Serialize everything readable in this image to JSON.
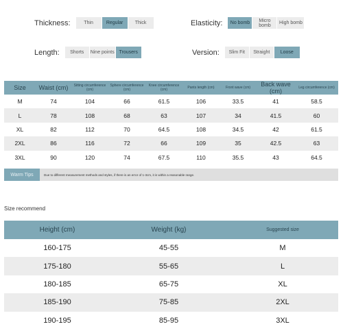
{
  "attributes": {
    "thickness": {
      "label": "Thickness:",
      "options": [
        "Thin",
        "Regular",
        "Thick"
      ],
      "selected": 1
    },
    "elasticity": {
      "label": "Elasticity:",
      "options": [
        "No bomb",
        "Micro bomb",
        "High bomb"
      ],
      "selected": 0
    },
    "length": {
      "label": "Length:",
      "options": [
        "Shorts",
        "Nine points",
        "Trousers"
      ],
      "selected": 2
    },
    "version": {
      "label": "Version:",
      "options": [
        "Slim Fit",
        "Straight",
        "Loose"
      ],
      "selected": 2
    }
  },
  "size_table": {
    "headers": [
      "Size",
      "Waist (cm)",
      "Sitting circumference (cm)",
      "Sphere circumference (cm)",
      "Knee circumference (cm)",
      "Pants length (cm)",
      "Front wave (cm)",
      "Back wave (cm)",
      "Leg circumference (cm)"
    ],
    "rows": [
      [
        "M",
        "74",
        "104",
        "66",
        "61.5",
        "106",
        "33.5",
        "41",
        "58.5"
      ],
      [
        "L",
        "78",
        "108",
        "68",
        "63",
        "107",
        "34",
        "41.5",
        "60"
      ],
      [
        "XL",
        "82",
        "112",
        "70",
        "64.5",
        "108",
        "34.5",
        "42",
        "61.5"
      ],
      [
        "2XL",
        "86",
        "116",
        "72",
        "66",
        "109",
        "35",
        "42.5",
        "63"
      ],
      [
        "3XL",
        "90",
        "120",
        "74",
        "67.5",
        "110",
        "35.5",
        "43",
        "64.5"
      ]
    ]
  },
  "tips": {
    "label": "Warm Tips",
    "text": "Due to different measurement methods and styles, if there is an error of 1-3cm, it is within a reasonable range."
  },
  "recommend": {
    "title": "Size recommend",
    "headers": [
      "Height (cm)",
      "Weight (kg)",
      "Suggested size"
    ],
    "rows": [
      [
        "160-175",
        "45-55",
        "M"
      ],
      [
        "175-180",
        "55-65",
        "L"
      ],
      [
        "180-185",
        "65-75",
        "XL"
      ],
      [
        "185-190",
        "75-85",
        "2XL"
      ],
      [
        "190-195",
        "85-95",
        "3XL"
      ]
    ]
  },
  "colors": {
    "accent": "#7fa8b6",
    "stripe": "#ececec"
  }
}
